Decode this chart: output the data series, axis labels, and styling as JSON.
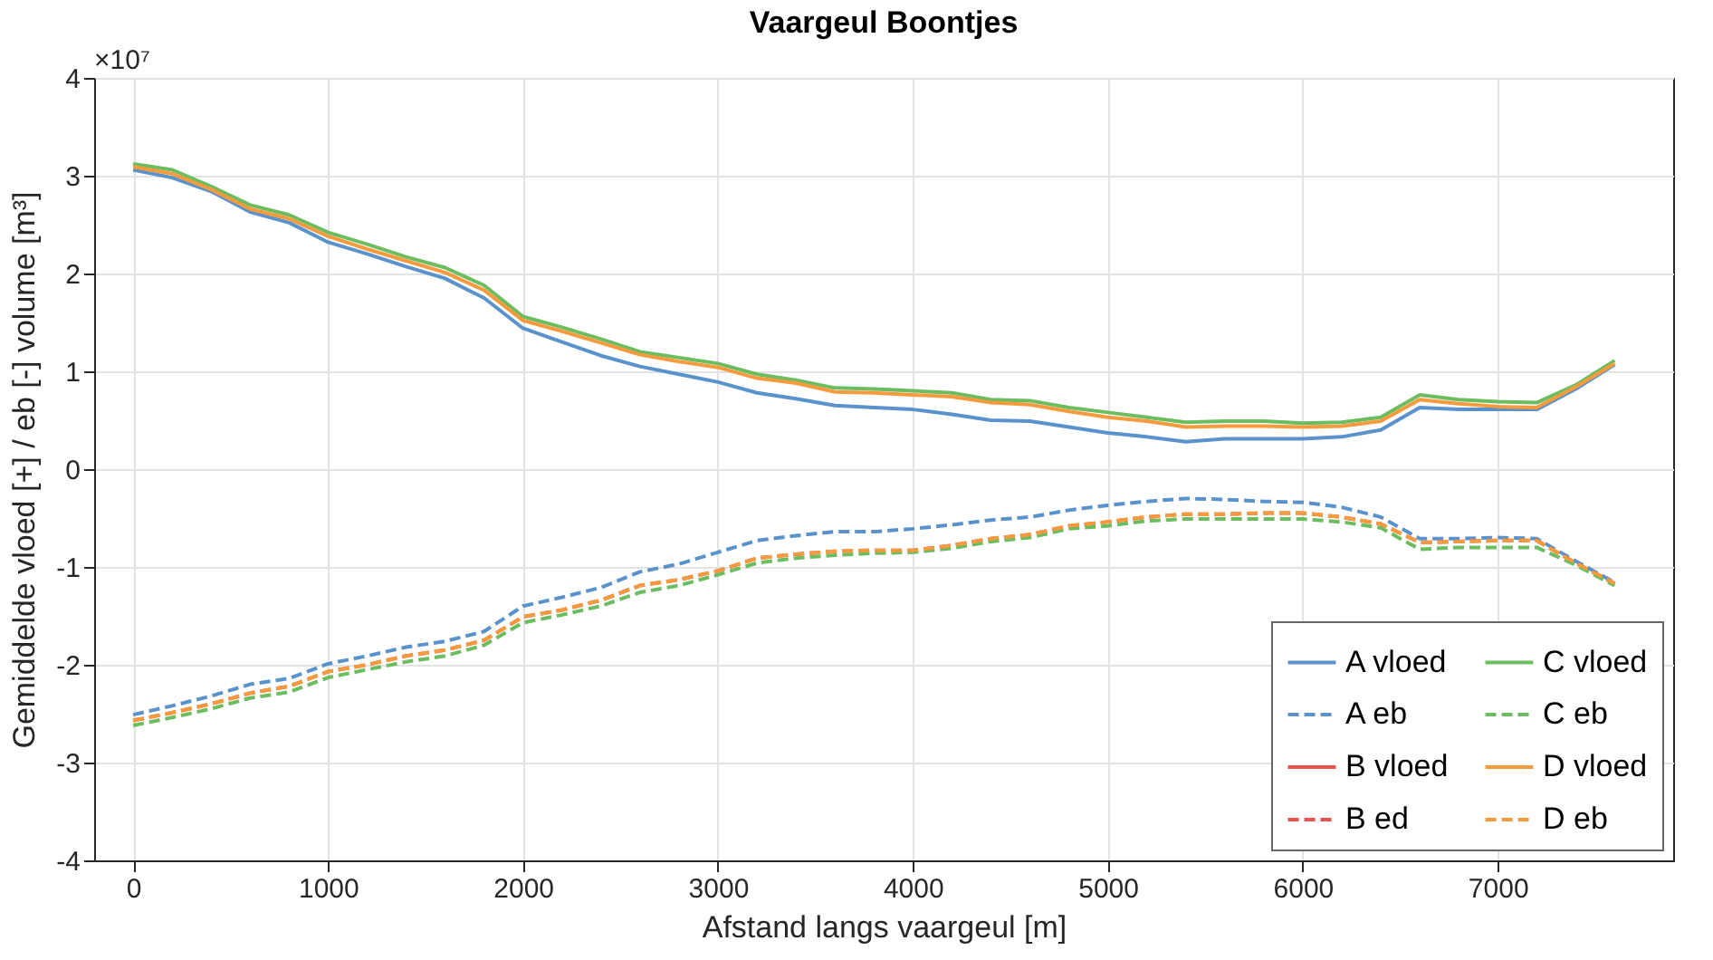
{
  "chart_data": {
    "type": "line",
    "title": "Vaargeul Boontjes",
    "xlabel": "Afstand langs vaargeul [m]",
    "ylabel": "Gemiddelde vloed [+] / eb [-] volume [m³]",
    "annotations": [
      "×10⁷"
    ],
    "x": [
      0,
      200,
      400,
      600,
      800,
      1000,
      1200,
      1400,
      1600,
      1800,
      2000,
      2200,
      2400,
      2600,
      2800,
      3000,
      3200,
      3400,
      3600,
      3800,
      4000,
      4200,
      4400,
      4600,
      4800,
      5000,
      5200,
      5400,
      5600,
      5800,
      6000,
      6200,
      6400,
      6600,
      6800,
      7000,
      7200,
      7400,
      7600
    ],
    "xlim": [
      -200,
      7900
    ],
    "xticks": [
      0,
      1000,
      2000,
      3000,
      4000,
      5000,
      6000,
      7000
    ],
    "ylim": [
      -4,
      4
    ],
    "yticks": [
      -4,
      -3,
      -2,
      -1,
      0,
      1,
      2,
      3,
      4
    ],
    "grid": true,
    "legend": "bottom right",
    "marker": "none",
    "series": [
      {
        "name": "A vloed",
        "color": "#5a92cc",
        "line_style": "solid",
        "values": [
          3.06,
          2.98,
          2.84,
          2.63,
          2.52,
          2.32,
          2.2,
          2.07,
          1.95,
          1.75,
          1.44,
          1.3,
          1.16,
          1.05,
          0.97,
          0.89,
          0.78,
          0.72,
          0.65,
          0.63,
          0.61,
          0.56,
          0.5,
          0.49,
          0.43,
          0.37,
          0.33,
          0.28,
          0.31,
          0.31,
          0.31,
          0.33,
          0.4,
          0.63,
          0.61,
          0.61,
          0.61,
          0.82,
          1.07
        ]
      },
      {
        "name": "A eb",
        "color": "#5a92cc",
        "line_style": "dashed",
        "values": [
          -2.51,
          -2.42,
          -2.32,
          -2.2,
          -2.14,
          -1.99,
          -1.91,
          -1.82,
          -1.76,
          -1.66,
          -1.4,
          -1.31,
          -1.21,
          -1.05,
          -0.97,
          -0.85,
          -0.73,
          -0.68,
          -0.64,
          -0.64,
          -0.61,
          -0.57,
          -0.52,
          -0.49,
          -0.42,
          -0.37,
          -0.33,
          -0.3,
          -0.31,
          -0.33,
          -0.34,
          -0.39,
          -0.49,
          -0.71,
          -0.71,
          -0.7,
          -0.71,
          -0.94,
          -1.16
        ]
      },
      {
        "name": "B vloed",
        "color": "#e8524f",
        "line_style": "solid",
        "values": [
          null,
          null,
          null,
          null,
          null,
          null,
          null,
          null,
          null,
          null,
          null,
          null,
          null,
          null,
          null,
          null,
          null,
          null,
          null,
          null,
          null,
          null,
          null,
          null,
          null,
          null,
          null,
          null,
          null,
          null,
          null,
          null,
          null,
          null,
          null,
          null,
          null,
          null,
          null
        ]
      },
      {
        "name": "B ed",
        "color": "#e8524f",
        "line_style": "dashed",
        "values": [
          -2.57,
          -2.49,
          -2.4,
          -2.29,
          -2.22,
          -2.07,
          -2,
          -1.91,
          -1.85,
          -1.75,
          -1.51,
          -1.44,
          -1.34,
          -1.19,
          -1.13,
          -1.04,
          -0.91,
          -0.87,
          -0.84,
          -0.83,
          -0.83,
          -0.78,
          -0.71,
          -0.67,
          -0.58,
          -0.54,
          -0.49,
          -0.46,
          -0.46,
          -0.45,
          -0.45,
          -0.49,
          -0.56,
          -0.75,
          -0.74,
          -0.73,
          -0.73,
          -0.96,
          -1.17
        ]
      },
      {
        "name": "C vloed",
        "color": "#6cbd5f",
        "line_style": "solid",
        "values": [
          3.12,
          3.06,
          2.89,
          2.7,
          2.6,
          2.42,
          2.3,
          2.17,
          2.06,
          1.88,
          1.56,
          1.45,
          1.33,
          1.2,
          1.14,
          1.08,
          0.97,
          0.91,
          0.83,
          0.82,
          0.8,
          0.78,
          0.71,
          0.7,
          0.63,
          0.58,
          0.53,
          0.48,
          0.49,
          0.49,
          0.47,
          0.48,
          0.53,
          0.76,
          0.71,
          0.69,
          0.68,
          0.86,
          1.11
        ]
      },
      {
        "name": "C eb",
        "color": "#6cbd5f",
        "line_style": "dashed",
        "values": [
          -2.62,
          -2.54,
          -2.45,
          -2.34,
          -2.28,
          -2.13,
          -2.05,
          -1.97,
          -1.91,
          -1.8,
          -1.57,
          -1.49,
          -1.4,
          -1.26,
          -1.19,
          -1.08,
          -0.96,
          -0.91,
          -0.88,
          -0.86,
          -0.85,
          -0.81,
          -0.74,
          -0.7,
          -0.61,
          -0.58,
          -0.53,
          -0.51,
          -0.51,
          -0.51,
          -0.51,
          -0.54,
          -0.6,
          -0.82,
          -0.8,
          -0.8,
          -0.8,
          -0.98,
          -1.19
        ]
      },
      {
        "name": "D vloed",
        "color": "#f59b3d",
        "line_style": "solid",
        "values": [
          3.09,
          3.02,
          2.86,
          2.66,
          2.56,
          2.38,
          2.25,
          2.13,
          2.01,
          1.83,
          1.52,
          1.41,
          1.29,
          1.17,
          1.1,
          1.04,
          0.93,
          0.88,
          0.79,
          0.78,
          0.76,
          0.74,
          0.68,
          0.66,
          0.59,
          0.53,
          0.49,
          0.43,
          0.44,
          0.44,
          0.43,
          0.44,
          0.49,
          0.71,
          0.67,
          0.64,
          0.63,
          0.84,
          1.08
        ]
      },
      {
        "name": "D eb",
        "color": "#f59b3d",
        "line_style": "dashed",
        "values": [
          -2.57,
          -2.49,
          -2.4,
          -2.29,
          -2.22,
          -2.07,
          -2,
          -1.91,
          -1.85,
          -1.75,
          -1.51,
          -1.44,
          -1.34,
          -1.19,
          -1.13,
          -1.04,
          -0.91,
          -0.87,
          -0.84,
          -0.83,
          -0.83,
          -0.78,
          -0.71,
          -0.67,
          -0.58,
          -0.54,
          -0.49,
          -0.46,
          -0.46,
          -0.45,
          -0.45,
          -0.49,
          -0.56,
          -0.75,
          -0.74,
          -0.73,
          -0.73,
          -0.96,
          -1.17
        ]
      }
    ]
  }
}
